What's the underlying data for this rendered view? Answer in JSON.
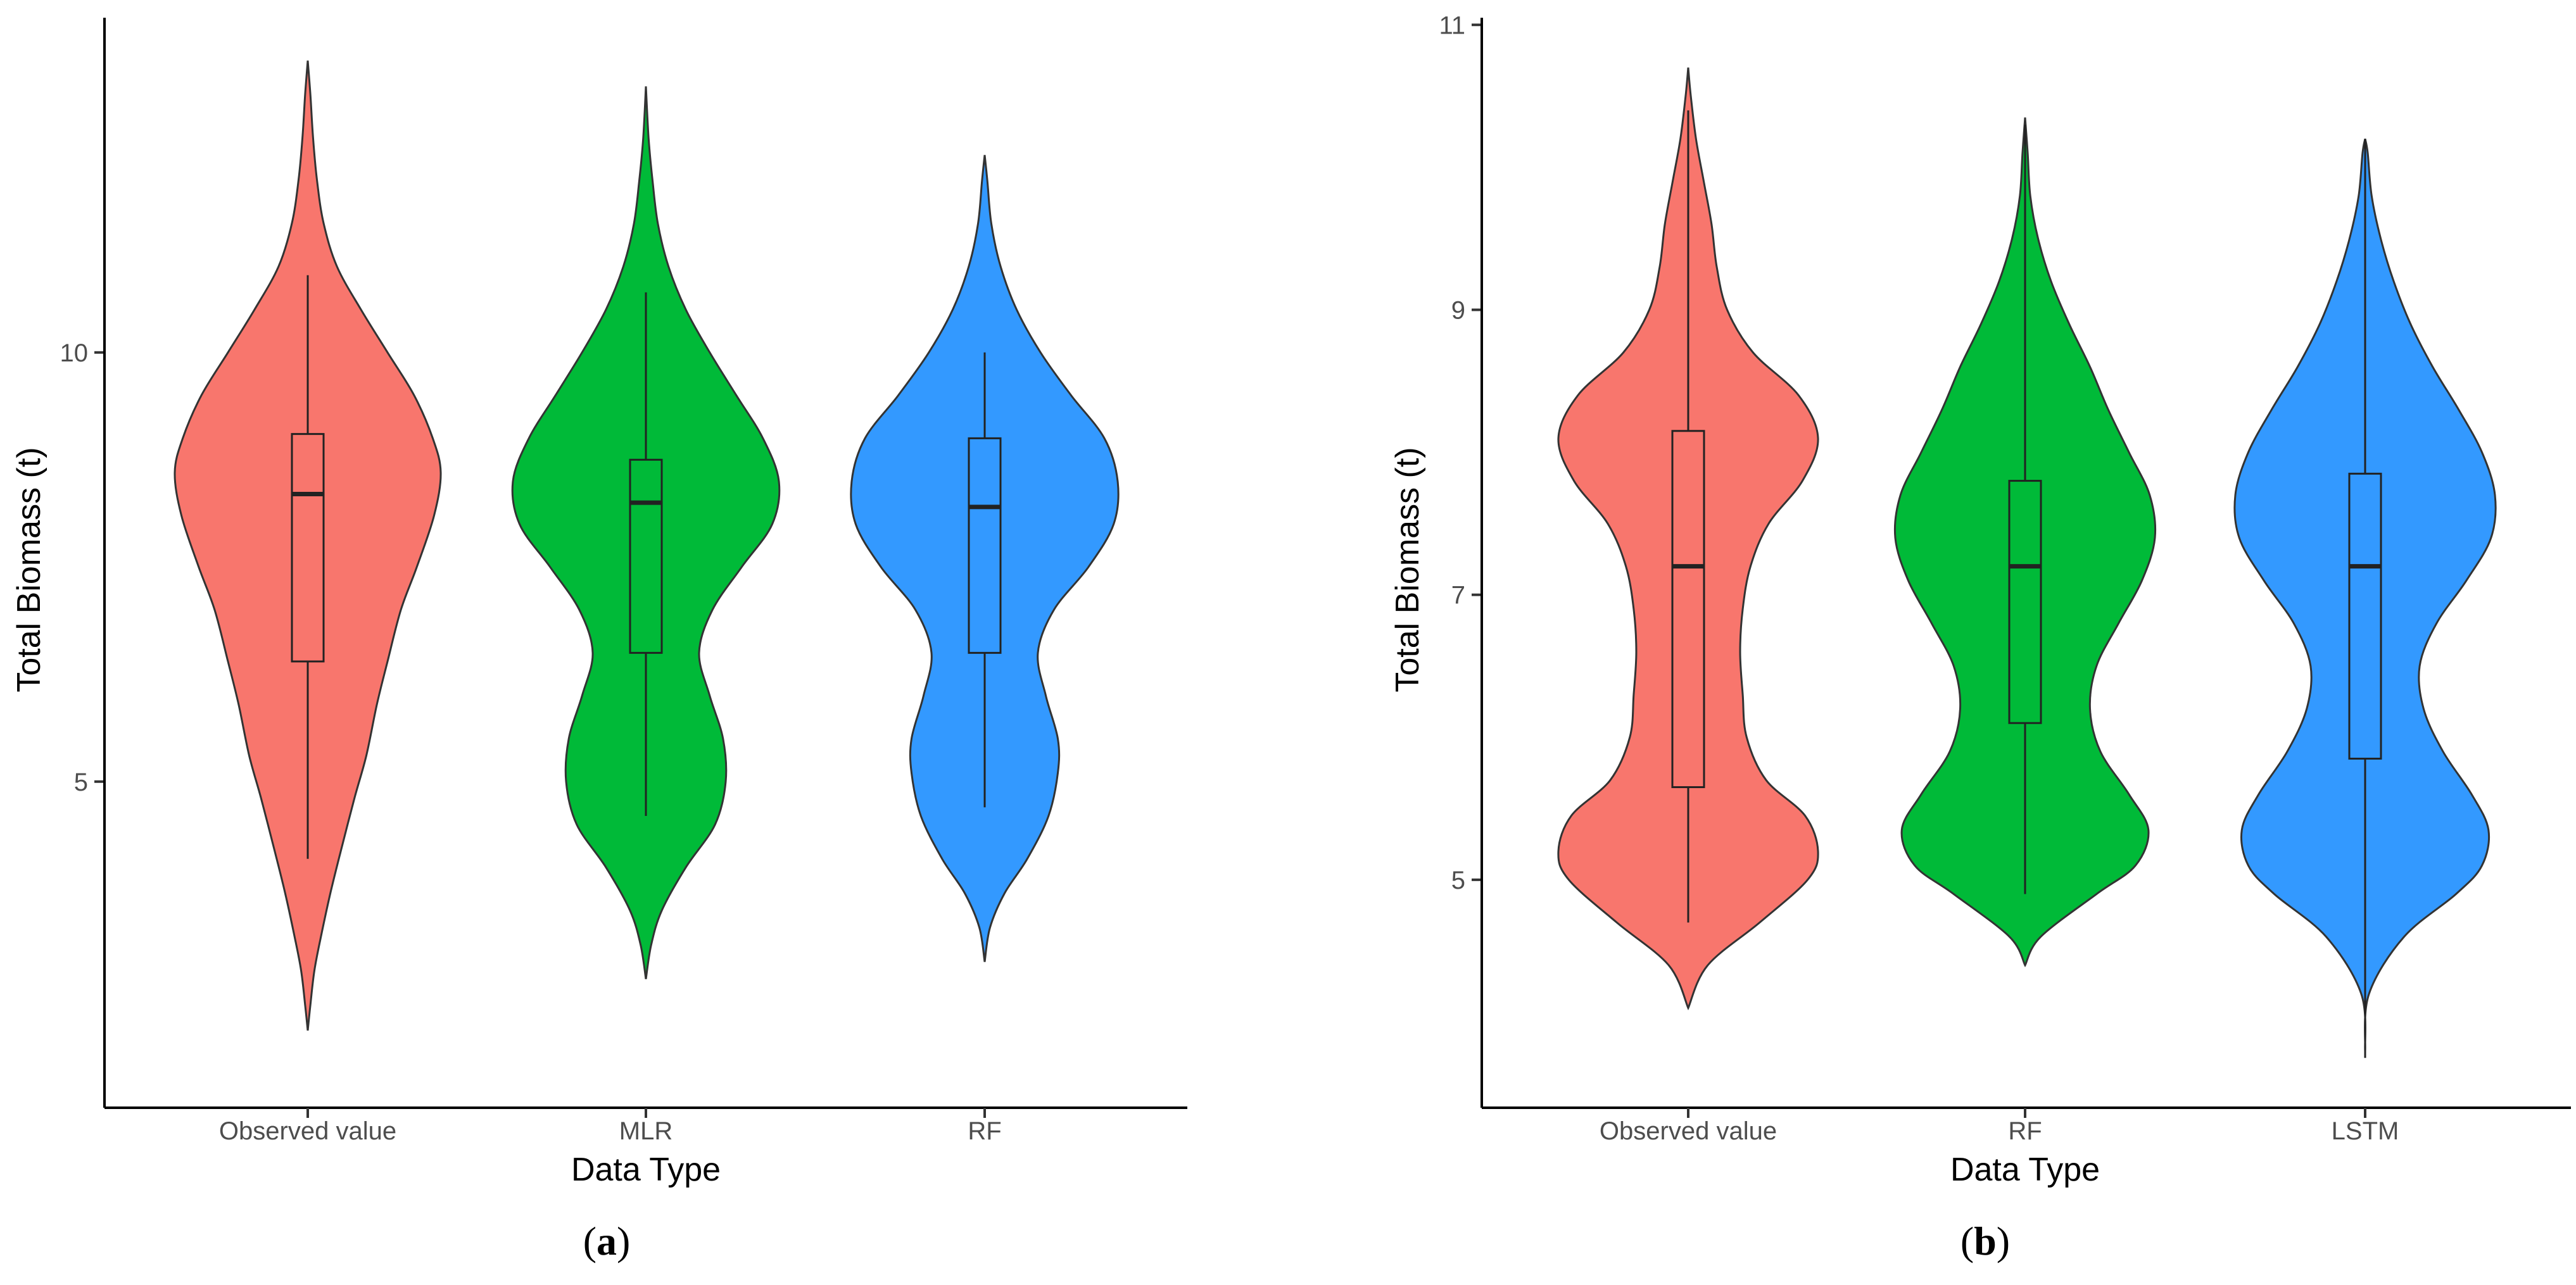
{
  "chart_data": [
    {
      "type": "violin",
      "panel_label": "a",
      "xlabel": "Data Type",
      "ylabel": "Total Biomass (t)",
      "ylim": [
        1.2,
        13.9
      ],
      "yticks": [
        5,
        10
      ],
      "categories": [
        "Observed value",
        "MLR",
        "RF"
      ],
      "series": [
        {
          "name": "Observed value",
          "color": "#F8766D",
          "density_y": [
            2.1,
            2.4,
            2.8,
            3.2,
            3.7,
            4.2,
            4.8,
            5.3,
            5.9,
            6.4,
            7.0,
            7.5,
            8.1,
            8.6,
            9.0,
            9.5,
            10.0,
            10.5,
            11.0,
            11.5,
            12.0,
            12.5,
            13.0,
            13.4
          ],
          "density_w": [
            0.0,
            0.02,
            0.05,
            0.1,
            0.17,
            0.25,
            0.35,
            0.44,
            0.52,
            0.6,
            0.7,
            0.82,
            0.95,
            1.0,
            0.94,
            0.8,
            0.6,
            0.4,
            0.22,
            0.12,
            0.07,
            0.04,
            0.02,
            0.0
          ],
          "whisker": [
            4.1,
            10.9
          ],
          "q1": 6.4,
          "median": 8.35,
          "q3": 9.05
        },
        {
          "name": "MLR",
          "color": "#00BA38",
          "density_y": [
            2.7,
            3.1,
            3.5,
            4.0,
            4.5,
            5.0,
            5.5,
            6.0,
            6.5,
            7.0,
            7.5,
            8.0,
            8.5,
            9.0,
            9.5,
            10.0,
            10.5,
            11.0,
            11.5,
            12.0,
            12.5,
            13.1
          ],
          "density_w": [
            0.0,
            0.04,
            0.12,
            0.3,
            0.52,
            0.6,
            0.58,
            0.48,
            0.4,
            0.5,
            0.72,
            0.95,
            1.0,
            0.88,
            0.68,
            0.48,
            0.3,
            0.17,
            0.09,
            0.05,
            0.02,
            0.0
          ],
          "whisker": [
            4.6,
            10.7
          ],
          "q1": 6.5,
          "median": 8.25,
          "q3": 8.75
        },
        {
          "name": "RF",
          "color": "#3399FF",
          "density_y": [
            2.9,
            3.3,
            3.7,
            4.1,
            4.6,
            5.1,
            5.5,
            6.0,
            6.5,
            7.0,
            7.5,
            8.0,
            8.5,
            9.0,
            9.5,
            10.0,
            10.5,
            11.0,
            11.5,
            12.0,
            12.3
          ],
          "density_w": [
            0.0,
            0.04,
            0.15,
            0.32,
            0.48,
            0.55,
            0.55,
            0.46,
            0.4,
            0.52,
            0.78,
            0.97,
            1.0,
            0.9,
            0.65,
            0.42,
            0.24,
            0.12,
            0.05,
            0.02,
            0.0
          ],
          "whisker": [
            4.7,
            10.0
          ],
          "q1": 6.5,
          "median": 8.2,
          "q3": 9.0
        }
      ]
    },
    {
      "type": "violin",
      "panel_label": "b",
      "xlabel": "Data Type",
      "ylabel": "Total Biomass (t)",
      "ylim": [
        3.4,
        11.05
      ],
      "yticks": [
        5,
        7,
        9,
        11
      ],
      "categories": [
        "Observed value",
        "RF",
        "LSTM"
      ],
      "series": [
        {
          "name": "Observed value",
          "color": "#F8766D",
          "density_y": [
            4.1,
            4.4,
            4.7,
            5.0,
            5.2,
            5.45,
            5.7,
            6.0,
            6.3,
            6.6,
            6.9,
            7.2,
            7.5,
            7.8,
            8.1,
            8.4,
            8.7,
            9.0,
            9.3,
            9.6,
            9.9,
            10.2,
            10.5,
            10.7
          ],
          "density_w": [
            0.0,
            0.15,
            0.55,
            0.92,
            1.0,
            0.9,
            0.6,
            0.45,
            0.42,
            0.4,
            0.42,
            0.48,
            0.62,
            0.88,
            1.0,
            0.85,
            0.5,
            0.3,
            0.22,
            0.18,
            0.12,
            0.06,
            0.02,
            0.0
          ],
          "whisker": [
            4.7,
            10.4
          ],
          "q1": 5.65,
          "median": 7.2,
          "q3": 8.15
        },
        {
          "name": "RF",
          "color": "#00BA38",
          "density_y": [
            4.4,
            4.6,
            4.9,
            5.1,
            5.35,
            5.6,
            5.9,
            6.2,
            6.5,
            6.8,
            7.1,
            7.4,
            7.7,
            8.0,
            8.3,
            8.6,
            8.9,
            9.2,
            9.5,
            9.8,
            10.1,
            10.35
          ],
          "density_w": [
            0.0,
            0.12,
            0.55,
            0.85,
            0.95,
            0.8,
            0.58,
            0.5,
            0.55,
            0.72,
            0.9,
            1.0,
            0.96,
            0.8,
            0.64,
            0.5,
            0.34,
            0.2,
            0.1,
            0.04,
            0.02,
            0.0
          ],
          "whisker": [
            4.9,
            10.3
          ],
          "q1": 6.1,
          "median": 7.2,
          "q3": 7.8
        },
        {
          "name": "LSTM",
          "color": "#3399FF",
          "density_y": [
            3.8,
            4.2,
            4.6,
            4.9,
            5.1,
            5.35,
            5.6,
            5.9,
            6.2,
            6.5,
            6.8,
            7.1,
            7.4,
            7.7,
            8.0,
            8.3,
            8.6,
            8.9,
            9.2,
            9.5,
            9.8,
            10.1,
            10.2
          ],
          "density_w": [
            0.0,
            0.03,
            0.3,
            0.7,
            0.9,
            0.95,
            0.82,
            0.6,
            0.45,
            0.42,
            0.55,
            0.78,
            0.97,
            1.0,
            0.9,
            0.72,
            0.52,
            0.35,
            0.22,
            0.12,
            0.05,
            0.02,
            0.0
          ],
          "whisker": [
            3.75,
            10.2
          ],
          "q1": 5.85,
          "median": 7.2,
          "q3": 7.85
        }
      ]
    }
  ]
}
